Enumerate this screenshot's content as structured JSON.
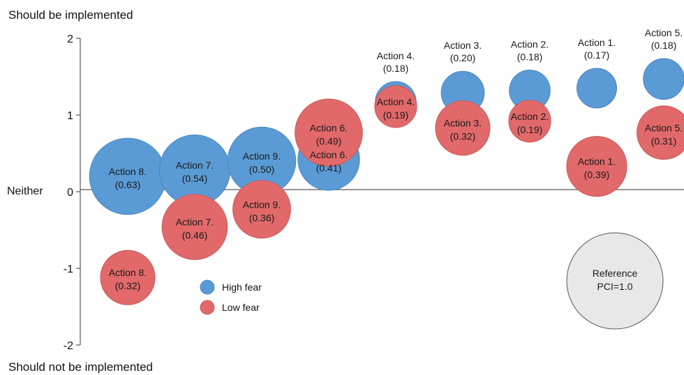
{
  "chart_data": {
    "type": "bubble",
    "title": "",
    "y_top_label": "Should be implemented",
    "y_bottom_label": "Should not be implemented",
    "y_zero_label": "Neither",
    "ylim": [
      -2,
      2
    ],
    "yticks": [
      2,
      1,
      0,
      -1,
      -2
    ],
    "colors": {
      "high_fear": "#5b9bd5",
      "low_fear": "#e2696a",
      "reference": "#e8e8e8"
    },
    "legend": [
      {
        "key": "high_fear",
        "label": "High fear"
      },
      {
        "key": "low_fear",
        "label": "Low fear"
      }
    ],
    "actions": [
      {
        "label": "Action 8.",
        "order": 1,
        "high_fear": {
          "y": 0.2,
          "pci": 0.63,
          "label_position": "inside"
        },
        "low_fear": {
          "y": -1.12,
          "pci": 0.32,
          "label_position": "inside"
        }
      },
      {
        "label": "Action 7.",
        "order": 2,
        "high_fear": {
          "y": 0.28,
          "pci": 0.54,
          "label_position": "inside"
        },
        "low_fear": {
          "y": -0.46,
          "pci": 0.46,
          "label_position": "inside"
        }
      },
      {
        "label": "Action 9.",
        "order": 3,
        "high_fear": {
          "y": 0.4,
          "pci": 0.5,
          "label_position": "inside"
        },
        "low_fear": {
          "y": -0.23,
          "pci": 0.36,
          "label_position": "inside"
        }
      },
      {
        "label": "Action 6.",
        "order": 4,
        "high_fear": {
          "y": 0.42,
          "pci": 0.41,
          "label_position": "inside"
        },
        "low_fear": {
          "y": 0.77,
          "pci": 0.49,
          "label_position": "inside"
        }
      },
      {
        "label": "Action 4.",
        "order": 5,
        "high_fear": {
          "y": 1.17,
          "pci": 0.18,
          "label_position": "above"
        },
        "low_fear": {
          "y": 1.11,
          "pci": 0.19,
          "label_position": "inside"
        }
      },
      {
        "label": "Action 3.",
        "order": 6,
        "high_fear": {
          "y": 1.29,
          "pci": 0.2,
          "label_position": "above"
        },
        "low_fear": {
          "y": 0.83,
          "pci": 0.32,
          "label_position": "inside"
        }
      },
      {
        "label": "Action 2.",
        "order": 7,
        "high_fear": {
          "y": 1.32,
          "pci": 0.18,
          "label_position": "above"
        },
        "low_fear": {
          "y": 0.92,
          "pci": 0.19,
          "label_position": "inside"
        }
      },
      {
        "label": "Action 1.",
        "order": 8,
        "high_fear": {
          "y": 1.35,
          "pci": 0.17,
          "label_position": "above"
        },
        "low_fear": {
          "y": 0.33,
          "pci": 0.39,
          "label_position": "inside"
        }
      },
      {
        "label": "Action 5.",
        "order": 9,
        "high_fear": {
          "y": 1.47,
          "pci": 0.18,
          "label_position": "above"
        },
        "low_fear": {
          "y": 0.77,
          "pci": 0.31,
          "label_position": "inside"
        }
      }
    ],
    "reference": {
      "label": "Reference",
      "pci_text": "PCI=1.0",
      "pci": 1.0
    }
  }
}
